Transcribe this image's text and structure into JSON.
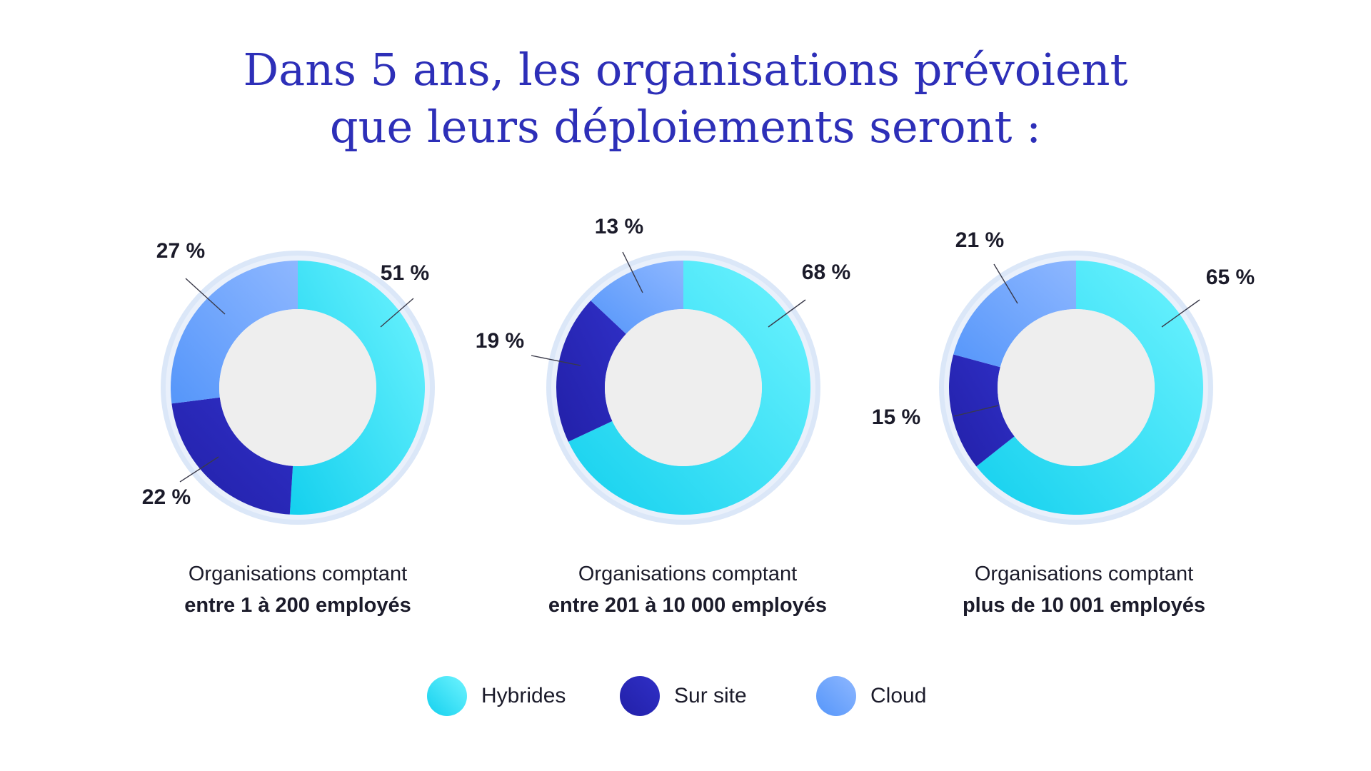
{
  "title": {
    "line1": "Dans 5 ans, les organisations prévoient",
    "line2": "que leurs déploiements seront :"
  },
  "colors": {
    "hybrides": [
      "#14d0ee",
      "#6ff4ff"
    ],
    "sur_site": [
      "#2220a8",
      "#2f2fc6"
    ],
    "cloud": [
      "#5596fa",
      "#8eb7ff"
    ],
    "hole": "#eeeeee",
    "ring": "#dbe7f8"
  },
  "chart_data": [
    {
      "type": "pie",
      "caption_line1": "Organisations comptant",
      "caption_line2": "entre 1 à 200 employés",
      "categories": [
        "Hybrides",
        "Sur site",
        "Cloud"
      ],
      "values": [
        51,
        22,
        27
      ],
      "labels": [
        "51 %",
        "22 %",
        "27 %"
      ]
    },
    {
      "type": "pie",
      "caption_line1": "Organisations comptant",
      "caption_line2": "entre 201 à 10 000 employés",
      "categories": [
        "Hybrides",
        "Sur site",
        "Cloud"
      ],
      "values": [
        68,
        19,
        13
      ],
      "labels": [
        "68 %",
        "19 %",
        "13 %"
      ]
    },
    {
      "type": "pie",
      "caption_line1": "Organisations comptant",
      "caption_line2": "plus de 10 001 employés",
      "categories": [
        "Hybrides",
        "Sur site",
        "Cloud"
      ],
      "values": [
        65,
        15,
        21
      ],
      "labels": [
        "65 %",
        "15 %",
        "21 %"
      ]
    }
  ],
  "legend": [
    {
      "label": "Hybrides",
      "key": "hybrides"
    },
    {
      "label": "Sur site",
      "key": "sur_site"
    },
    {
      "label": "Cloud",
      "key": "cloud"
    }
  ]
}
